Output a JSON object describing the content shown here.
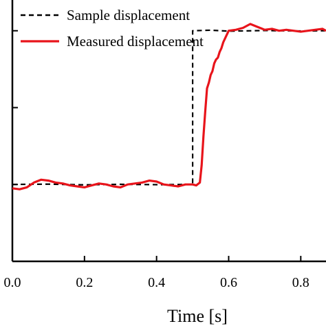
{
  "chart_data": {
    "type": "line",
    "title": "",
    "xlabel": "Time [s]",
    "ylabel": "",
    "xlim": [
      0.0,
      0.87
    ],
    "ylim": [
      0,
      1.36
    ],
    "xticks": [
      0.0,
      0.2,
      0.4,
      0.6,
      0.8
    ],
    "xtick_labels": [
      "0.0",
      "0.2",
      "0.4",
      "0.6",
      "0.8"
    ],
    "yticks": [
      0.4,
      0.8,
      1.2
    ],
    "grid": false,
    "legend_position": "top-left",
    "series": [
      {
        "name": "Sample displacement",
        "color": "#000000",
        "style": "dashed",
        "x": [
          0.0,
          0.1,
          0.2,
          0.3,
          0.4,
          0.5,
          0.5,
          0.55,
          0.6,
          0.7,
          0.8,
          0.87
        ],
        "y": [
          0.4,
          0.402,
          0.398,
          0.401,
          0.399,
          0.4,
          1.2,
          1.203,
          1.198,
          1.201,
          1.199,
          1.2
        ]
      },
      {
        "name": "Measured displacement",
        "color": "#e8141b",
        "style": "solid",
        "x": [
          0.0,
          0.02,
          0.04,
          0.06,
          0.08,
          0.1,
          0.12,
          0.14,
          0.16,
          0.18,
          0.2,
          0.22,
          0.24,
          0.26,
          0.28,
          0.3,
          0.32,
          0.34,
          0.36,
          0.38,
          0.4,
          0.42,
          0.44,
          0.46,
          0.48,
          0.5,
          0.51,
          0.52,
          0.525,
          0.53,
          0.535,
          0.54,
          0.545,
          0.55,
          0.555,
          0.56,
          0.565,
          0.57,
          0.575,
          0.58,
          0.585,
          0.59,
          0.6,
          0.62,
          0.64,
          0.66,
          0.68,
          0.7,
          0.72,
          0.74,
          0.76,
          0.78,
          0.8,
          0.82,
          0.84,
          0.86,
          0.87
        ],
        "y": [
          0.38,
          0.375,
          0.385,
          0.41,
          0.425,
          0.42,
          0.41,
          0.405,
          0.395,
          0.39,
          0.385,
          0.395,
          0.405,
          0.4,
          0.39,
          0.385,
          0.4,
          0.405,
          0.41,
          0.42,
          0.415,
          0.4,
          0.395,
          0.39,
          0.4,
          0.4,
          0.395,
          0.41,
          0.5,
          0.65,
          0.78,
          0.9,
          0.93,
          0.97,
          0.99,
          1.03,
          1.05,
          1.06,
          1.09,
          1.11,
          1.14,
          1.16,
          1.2,
          1.205,
          1.215,
          1.235,
          1.22,
          1.205,
          1.21,
          1.2,
          1.205,
          1.2,
          1.195,
          1.2,
          1.205,
          1.21,
          1.2
        ]
      }
    ]
  }
}
